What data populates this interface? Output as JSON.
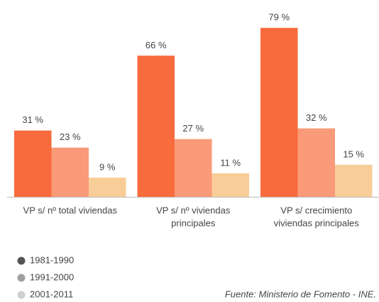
{
  "chart_data": {
    "type": "bar",
    "categories": [
      [
        "VP s/ nº total viviendas"
      ],
      [
        "VP s/ nº viviendas",
        "principales"
      ],
      [
        "VP s/ crecimiento",
        "viviendas principales"
      ]
    ],
    "series": [
      {
        "name": "1981-1990",
        "color": "#f76b3c",
        "legend_color": "#555555",
        "values": [
          31,
          66,
          79
        ],
        "value_labels": [
          "31 %",
          "66 %",
          "79 %"
        ]
      },
      {
        "name": "1991-2000",
        "color": "#f99a78",
        "legend_color": "#a0a0a0",
        "values": [
          23,
          27,
          32
        ],
        "value_labels": [
          "23 %",
          "27 %",
          "32 %"
        ]
      },
      {
        "name": "2001-2011",
        "color": "#f8cd98",
        "legend_color": "#cfcfcf",
        "values": [
          9,
          11,
          15
        ],
        "value_labels": [
          "9 %",
          "11 %",
          "15 %"
        ]
      }
    ],
    "source": "Fuente: Ministerio de Fomento - INE."
  }
}
